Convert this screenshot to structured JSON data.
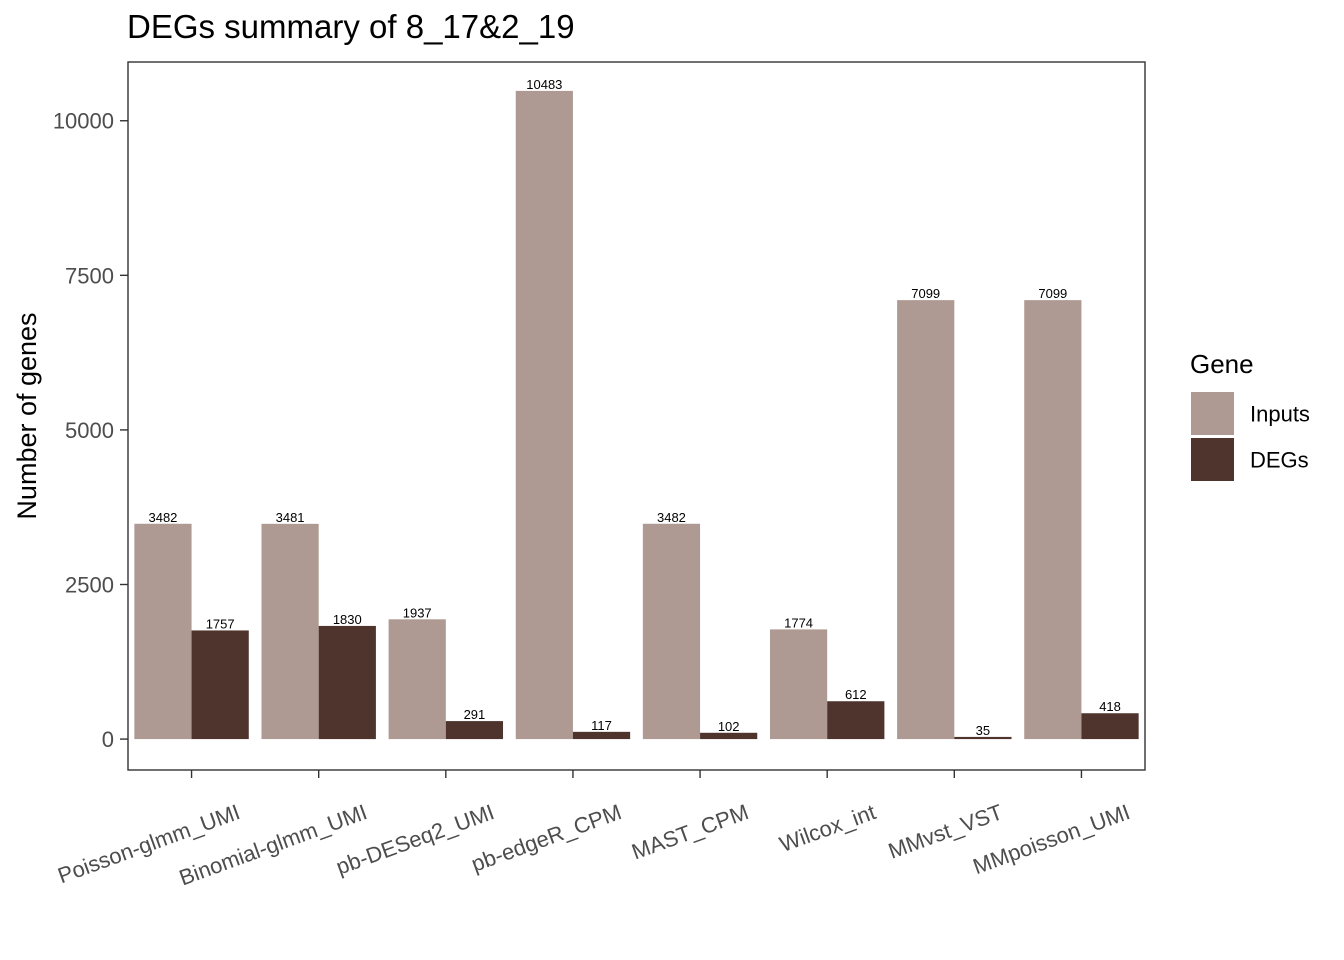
{
  "chart_data": {
    "type": "bar",
    "title": "DEGs summary of  8_17&2_19",
    "xlabel": "",
    "ylabel": "Number of genes",
    "categories": [
      "Poisson-glmm_UMI",
      "Binomial-glmm_UMI",
      "pb-DESeq2_UMI",
      "pb-edgeR_CPM",
      "MAST_CPM",
      "Wilcox_int",
      "MMvst_VST",
      "MMpoisson_UMI"
    ],
    "series": [
      {
        "name": "Inputs",
        "color": "#AF9A93",
        "values": [
          3482,
          3481,
          1937,
          10483,
          3482,
          1774,
          7099,
          7099
        ]
      },
      {
        "name": "DEGs",
        "color": "#4E342D",
        "values": [
          1757,
          1830,
          291,
          117,
          102,
          612,
          35,
          418
        ]
      }
    ],
    "ylim": [
      -500,
      10950
    ],
    "yticks": [
      0,
      2500,
      5000,
      7500,
      10000
    ],
    "grid": false,
    "legend": {
      "title": "Gene",
      "position": "right"
    },
    "x_tick_rotation_deg": 20
  }
}
